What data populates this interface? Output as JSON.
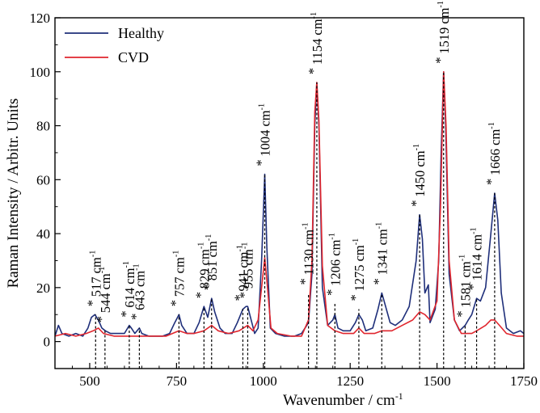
{
  "chart_data": {
    "type": "line",
    "xlabel": "Wavenumber / cm",
    "xlabel_sup": "-1",
    "ylabel": "Raman Intensity / Arbitr. Units",
    "xlim": [
      400,
      1750
    ],
    "ylim": [
      -10,
      120
    ],
    "xticks": [
      500,
      750,
      1000,
      1250,
      1500,
      1750
    ],
    "yticks": [
      0,
      20,
      40,
      60,
      80,
      100,
      120
    ],
    "grid": false,
    "legend_position": "top-left",
    "series": [
      {
        "name": "Healthy",
        "color": "#1f2f7a",
        "points": [
          [
            400,
            2
          ],
          [
            410,
            6
          ],
          [
            420,
            3
          ],
          [
            440,
            2
          ],
          [
            460,
            3
          ],
          [
            480,
            2
          ],
          [
            495,
            5
          ],
          [
            505,
            9
          ],
          [
            515,
            10
          ],
          [
            525,
            8
          ],
          [
            535,
            5
          ],
          [
            545,
            4
          ],
          [
            560,
            3
          ],
          [
            580,
            3
          ],
          [
            600,
            3
          ],
          [
            614,
            6
          ],
          [
            620,
            5
          ],
          [
            630,
            3
          ],
          [
            643,
            5
          ],
          [
            650,
            3
          ],
          [
            670,
            2
          ],
          [
            690,
            2
          ],
          [
            710,
            2
          ],
          [
            730,
            3
          ],
          [
            745,
            7
          ],
          [
            757,
            10
          ],
          [
            765,
            6
          ],
          [
            780,
            3
          ],
          [
            800,
            3
          ],
          [
            815,
            7
          ],
          [
            829,
            13
          ],
          [
            840,
            9
          ],
          [
            851,
            16
          ],
          [
            860,
            11
          ],
          [
            875,
            5
          ],
          [
            890,
            3
          ],
          [
            910,
            3
          ],
          [
            925,
            7
          ],
          [
            941,
            12
          ],
          [
            950,
            13
          ],
          [
            955,
            13
          ],
          [
            965,
            8
          ],
          [
            975,
            3
          ],
          [
            985,
            5
          ],
          [
            995,
            30
          ],
          [
            1004,
            62
          ],
          [
            1010,
            35
          ],
          [
            1020,
            5
          ],
          [
            1035,
            3
          ],
          [
            1060,
            2
          ],
          [
            1090,
            2
          ],
          [
            1110,
            3
          ],
          [
            1125,
            6
          ],
          [
            1130,
            7
          ],
          [
            1140,
            25
          ],
          [
            1148,
            80
          ],
          [
            1154,
            96
          ],
          [
            1160,
            80
          ],
          [
            1170,
            20
          ],
          [
            1185,
            6
          ],
          [
            1200,
            8
          ],
          [
            1206,
            10
          ],
          [
            1215,
            5
          ],
          [
            1230,
            4
          ],
          [
            1250,
            4
          ],
          [
            1265,
            7
          ],
          [
            1275,
            10
          ],
          [
            1285,
            8
          ],
          [
            1295,
            4
          ],
          [
            1315,
            5
          ],
          [
            1330,
            12
          ],
          [
            1341,
            18
          ],
          [
            1350,
            14
          ],
          [
            1365,
            7
          ],
          [
            1380,
            6
          ],
          [
            1400,
            8
          ],
          [
            1420,
            13
          ],
          [
            1440,
            30
          ],
          [
            1450,
            47
          ],
          [
            1458,
            38
          ],
          [
            1465,
            18
          ],
          [
            1475,
            21
          ],
          [
            1480,
            7
          ],
          [
            1495,
            12
          ],
          [
            1505,
            30
          ],
          [
            1512,
            70
          ],
          [
            1519,
            100
          ],
          [
            1525,
            80
          ],
          [
            1535,
            25
          ],
          [
            1550,
            8
          ],
          [
            1565,
            4
          ],
          [
            1581,
            6
          ],
          [
            1590,
            8
          ],
          [
            1600,
            10
          ],
          [
            1614,
            16
          ],
          [
            1625,
            15
          ],
          [
            1640,
            20
          ],
          [
            1655,
            40
          ],
          [
            1666,
            55
          ],
          [
            1675,
            45
          ],
          [
            1685,
            18
          ],
          [
            1700,
            5
          ],
          [
            1720,
            3
          ],
          [
            1740,
            4
          ],
          [
            1750,
            3
          ]
        ]
      },
      {
        "name": "CVD",
        "color": "#e0262e",
        "points": [
          [
            400,
            2
          ],
          [
            430,
            3
          ],
          [
            460,
            2
          ],
          [
            490,
            3
          ],
          [
            510,
            4
          ],
          [
            525,
            5
          ],
          [
            540,
            3
          ],
          [
            570,
            2
          ],
          [
            600,
            2
          ],
          [
            640,
            2
          ],
          [
            680,
            2
          ],
          [
            720,
            2
          ],
          [
            757,
            4
          ],
          [
            780,
            3
          ],
          [
            800,
            3
          ],
          [
            829,
            4
          ],
          [
            851,
            6
          ],
          [
            870,
            4
          ],
          [
            900,
            3
          ],
          [
            930,
            4
          ],
          [
            955,
            6
          ],
          [
            970,
            4
          ],
          [
            985,
            8
          ],
          [
            995,
            20
          ],
          [
            1004,
            31
          ],
          [
            1012,
            20
          ],
          [
            1022,
            5
          ],
          [
            1040,
            3
          ],
          [
            1080,
            2
          ],
          [
            1110,
            2
          ],
          [
            1130,
            8
          ],
          [
            1140,
            30
          ],
          [
            1148,
            85
          ],
          [
            1154,
            96
          ],
          [
            1160,
            82
          ],
          [
            1170,
            28
          ],
          [
            1185,
            6
          ],
          [
            1206,
            4
          ],
          [
            1230,
            3
          ],
          [
            1260,
            3
          ],
          [
            1275,
            5
          ],
          [
            1290,
            3
          ],
          [
            1320,
            3
          ],
          [
            1341,
            4
          ],
          [
            1370,
            4
          ],
          [
            1400,
            6
          ],
          [
            1430,
            8
          ],
          [
            1450,
            11
          ],
          [
            1465,
            10
          ],
          [
            1480,
            8
          ],
          [
            1500,
            15
          ],
          [
            1510,
            50
          ],
          [
            1519,
            100
          ],
          [
            1526,
            80
          ],
          [
            1535,
            30
          ],
          [
            1550,
            8
          ],
          [
            1570,
            3
          ],
          [
            1600,
            3
          ],
          [
            1614,
            4
          ],
          [
            1640,
            6
          ],
          [
            1655,
            8
          ],
          [
            1666,
            8
          ],
          [
            1680,
            6
          ],
          [
            1700,
            3
          ],
          [
            1730,
            2
          ],
          [
            1750,
            2
          ]
        ]
      }
    ],
    "peaks": [
      {
        "x": 517,
        "text": "517 cm",
        "label_y": 10
      },
      {
        "x": 544,
        "text": "544 cm",
        "label_y": 4
      },
      {
        "x": 614,
        "text": "614 cm",
        "label_y": 6
      },
      {
        "x": 643,
        "text": "643 cm",
        "label_y": 5
      },
      {
        "x": 757,
        "text": "757 cm",
        "label_y": 10
      },
      {
        "x": 829,
        "text": "829 cm",
        "label_y": 13
      },
      {
        "x": 851,
        "text": "851 cm",
        "label_y": 16
      },
      {
        "x": 941,
        "text": "941 cm",
        "label_y": 12
      },
      {
        "x": 955,
        "text": "955 cm",
        "label_y": 13
      },
      {
        "x": 1004,
        "text": "1004 cm",
        "label_y": 62
      },
      {
        "x": 1130,
        "text": "1130 cm",
        "label_y": 18
      },
      {
        "x": 1154,
        "text": "1154 cm",
        "label_y": 96
      },
      {
        "x": 1206,
        "text": "1206 cm",
        "label_y": 14
      },
      {
        "x": 1275,
        "text": "1275 cm",
        "label_y": 12
      },
      {
        "x": 1341,
        "text": "1341 cm",
        "label_y": 18
      },
      {
        "x": 1450,
        "text": "1450 cm",
        "label_y": 47
      },
      {
        "x": 1519,
        "text": "1519 cm",
        "label_y": 100
      },
      {
        "x": 1581,
        "text": "1581 cm",
        "label_y": 6
      },
      {
        "x": 1614,
        "text": "1614 cm",
        "label_y": 16
      },
      {
        "x": 1666,
        "text": "1666 cm",
        "label_y": 55
      }
    ],
    "peak_unit_sup": "-1",
    "peak_marker": "*"
  }
}
